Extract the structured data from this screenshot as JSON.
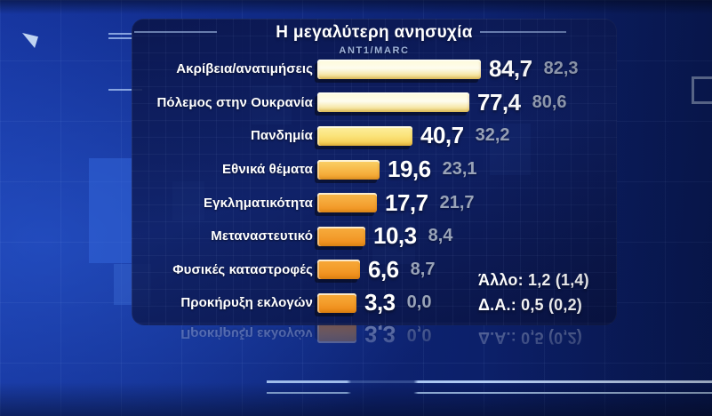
{
  "header": {
    "title": "Η μεγαλύτερη ανησυχία",
    "source": "ANT1/MARC"
  },
  "rows": [
    {
      "label": "Ακρίβεια/ανατιμήσεις",
      "value": 84.7,
      "value_display": "84,7",
      "prev_display": "82,3",
      "color_top": "#FDFAD8",
      "color_mid": "#FEFCEE",
      "color_bottom": "#F1D978"
    },
    {
      "label": "Πόλεμος στην Ουκρανία",
      "value": 77.4,
      "value_display": "77,4",
      "prev_display": "80,6",
      "color_top": "#FDFAD8",
      "color_mid": "#FEFCEE",
      "color_bottom": "#F1D978"
    },
    {
      "label": "Πανδημία",
      "value": 40.7,
      "value_display": "40,7",
      "prev_display": "32,2",
      "color_top": "#FCEFA0",
      "color_mid": "#FBE57E",
      "color_bottom": "#F5CB4E"
    },
    {
      "label": "Εθνικά θέματα",
      "value": 19.6,
      "value_display": "19,6",
      "prev_display": "23,1",
      "color_top": "#FAD36A",
      "color_mid": "#F8BC4C",
      "color_bottom": "#F29E2A"
    },
    {
      "label": "Εγκληματικότητα",
      "value": 17.7,
      "value_display": "17,7",
      "prev_display": "21,7",
      "color_top": "#F8B94C",
      "color_mid": "#F5A839",
      "color_bottom": "#F0901E"
    },
    {
      "label": "Μεταναστευτικό",
      "value": 10.3,
      "value_display": "10,3",
      "prev_display": "8,4",
      "color_top": "#F7AD3E",
      "color_mid": "#F4A030",
      "color_bottom": "#EE8A18"
    },
    {
      "label": "Φυσικές καταστροφές",
      "value": 6.6,
      "value_display": "6,6",
      "prev_display": "8,7",
      "color_top": "#F7A93A",
      "color_mid": "#F49E2C",
      "color_bottom": "#EC8614"
    },
    {
      "label": "Προκήρυξη εκλογών",
      "value": 3.3,
      "value_display": "3,3",
      "prev_display": "0,0",
      "color_top": "#F7A93A",
      "color_mid": "#F49E2C",
      "color_bottom": "#EC8614"
    }
  ],
  "notes": {
    "other": "Άλλο: 1,2 (1,4)",
    "dk": "Δ.Α.: 0,5 (0,2)"
  },
  "colors": {
    "background_blue": "#112C8A",
    "panel_navy": "#0E2063",
    "value_current": "#FFFFFF",
    "value_previous": "#99A3B8",
    "subtitle": "#9FB3D9",
    "divider": "#9FBCEA"
  },
  "chart_data": {
    "type": "bar",
    "orientation": "horizontal",
    "title": "Η μεγαλύτερη ανησυχία",
    "subtitle": "ANT1/MARC",
    "categories": [
      "Ακρίβεια/ανατιμήσεις",
      "Πόλεμος στην Ουκρανία",
      "Πανδημία",
      "Εθνικά θέματα",
      "Εγκληματικότητα",
      "Μεταναστευτικό",
      "Φυσικές καταστροφές",
      "Προκήρυξη εκλογών"
    ],
    "series": [
      {
        "name": "current",
        "values": [
          84.7,
          77.4,
          40.7,
          19.6,
          17.7,
          10.3,
          6.6,
          3.3
        ]
      },
      {
        "name": "previous",
        "values": [
          82.3,
          80.6,
          32.2,
          23.1,
          21.7,
          8.4,
          8.7,
          0.0
        ]
      }
    ],
    "annotations": [
      "Άλλο: 1,2 (1,4)",
      "Δ.Α.: 0,5 (0,2)"
    ],
    "xlim": [
      0,
      100
    ],
    "grid": false,
    "legend": "none",
    "value_label_colors": {
      "current": "#FFFFFF",
      "previous": "#99A3B8"
    }
  }
}
